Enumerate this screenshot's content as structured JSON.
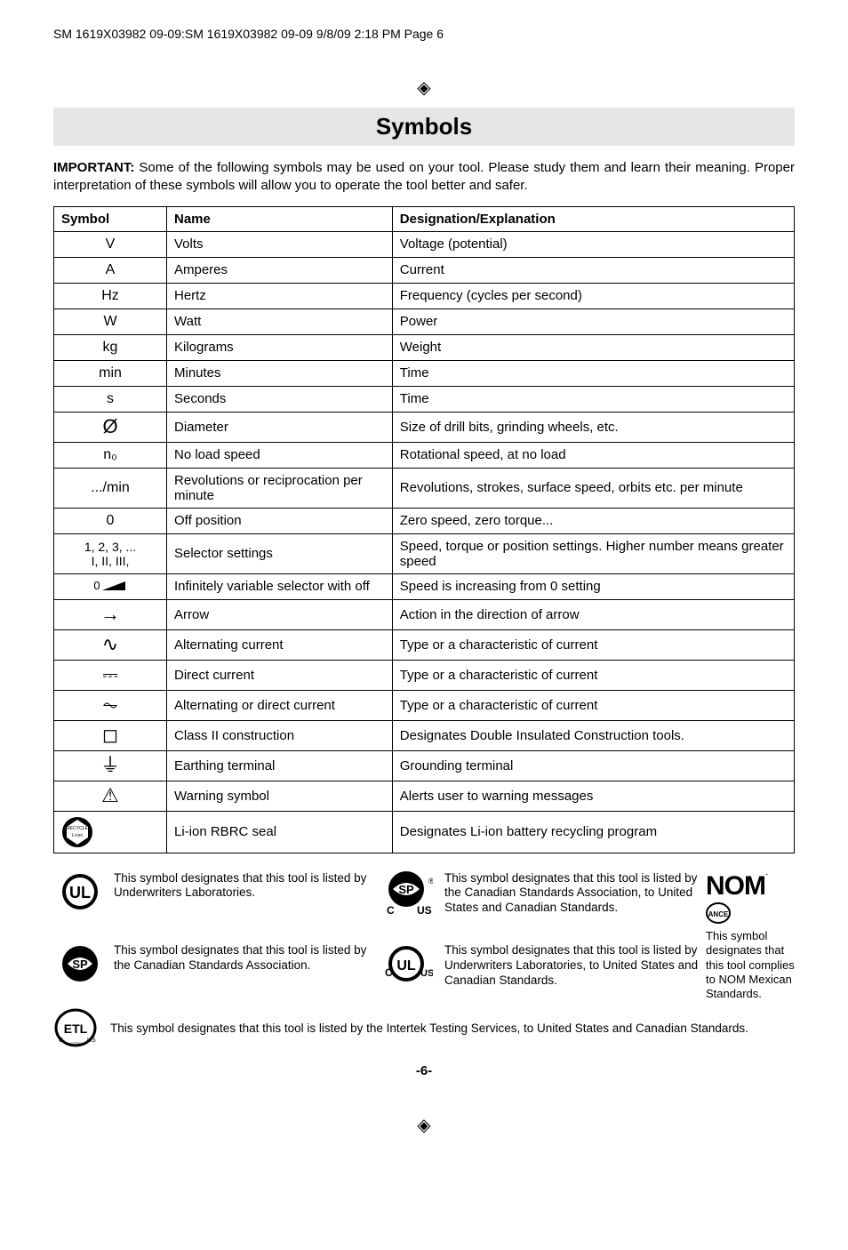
{
  "header": {
    "text": "SM 1619X03982 09-09:SM 1619X03982 09-09  9/8/09  2:18 PM  Page 6"
  },
  "title": "Symbols",
  "intro_bold": "IMPORTANT:",
  "intro": " Some of the following symbols may be used on your tool.  Please study them and learn their meaning.  Proper interpretation of these symbols will allow you to operate the tool better and safer.",
  "table": {
    "headers": {
      "symbol": "Symbol",
      "name": "Name",
      "designation": "Designation/Explanation"
    },
    "rows": [
      {
        "sym": "V",
        "name": "Volts",
        "desc": "Voltage (potential)"
      },
      {
        "sym": "A",
        "name": "Amperes",
        "desc": "Current"
      },
      {
        "sym": "Hz",
        "name": "Hertz",
        "desc": "Frequency (cycles per second)"
      },
      {
        "sym": "W",
        "name": "Watt",
        "desc": "Power"
      },
      {
        "sym": "kg",
        "name": "Kilograms",
        "desc": "Weight"
      },
      {
        "sym": "min",
        "name": "Minutes",
        "desc": "Time"
      },
      {
        "sym": "s",
        "name": "Seconds",
        "desc": "Time"
      },
      {
        "sym": "Ø",
        "name": "Diameter",
        "desc": "Size of drill bits, grinding wheels,  etc."
      },
      {
        "sym": "n₀",
        "name": "No load speed",
        "desc": "Rotational speed, at no load"
      },
      {
        "sym": ".../min",
        "name": "Revolutions or reciprocation per minute",
        "desc": "Revolutions, strokes, surface speed, orbits etc. per minute"
      },
      {
        "sym": "0",
        "name": "Off position",
        "desc": "Zero speed, zero torque..."
      },
      {
        "sym": "1, 2, 3, ...\nI, II, III,",
        "name": "Selector settings",
        "desc": "Speed, torque or position settings. Higher number means greater speed"
      },
      {
        "sym": "0◢",
        "name": "Infinitely variable selector with off",
        "desc": "Speed is increasing from 0 setting"
      },
      {
        "sym": "→",
        "name": "Arrow",
        "desc": "Action in the direction of arrow"
      },
      {
        "sym": "∿",
        "name": "Alternating current",
        "desc": "Type or a characteristic of current"
      },
      {
        "sym": "⎓",
        "name": "Direct current",
        "desc": "Type or a characteristic of current"
      },
      {
        "sym": "⏦",
        "name": "Alternating or direct current",
        "desc": "Type or a characteristic of current"
      },
      {
        "sym": "◻",
        "name": "Class II  construction",
        "desc": "Designates Double Insulated Construction tools."
      },
      {
        "sym": "⏚",
        "name": "Earthing terminal",
        "desc": "Grounding terminal"
      },
      {
        "sym": "⚠",
        "name": "Warning symbol",
        "desc": "Alerts user to warning messages"
      },
      {
        "sym": "♻",
        "name": "Li-ion RBRC seal",
        "desc": "Designates Li-ion battery recycling program"
      }
    ]
  },
  "footers": {
    "ul": "This symbol designates that this tool is listed by Underwriters Laboratories.",
    "csa_us": "This symbol designates that this tool is listed by the Canadian Standards Association, to United States and Canadian Standards.",
    "csa": "This symbol designates that this tool is listed by the Canadian Standards Association.",
    "culus": "This symbol designates that this tool is listed by Underwriters Laboratories, to United States and Canadian Standards.",
    "nom": "This symbol designates that this tool complies to NOM Mexican Standards.",
    "intertek": "This symbol designates that this tool is listed by the Intertek Testing Services, to United States and Canadian Standards."
  },
  "page_number": "-6-"
}
